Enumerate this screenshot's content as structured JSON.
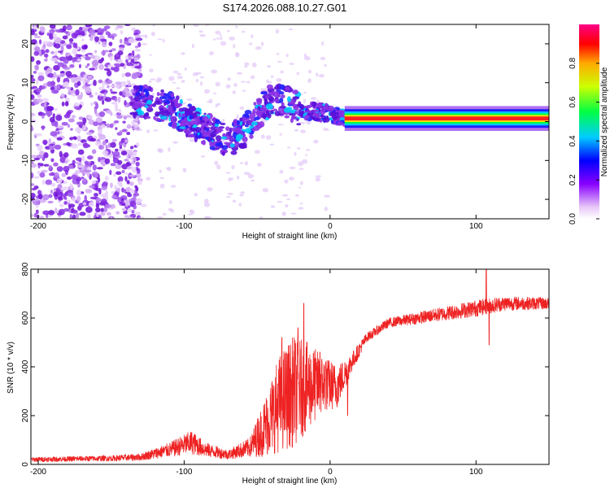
{
  "title": "S174.2026.088.10.27.G01",
  "chart_data": [
    {
      "type": "heatmap",
      "name": "spectrogram",
      "xlabel": "Height of straight line (km)",
      "ylabel": "Frequency (Hz)",
      "xlim": [
        -205,
        150
      ],
      "ylim": [
        -25,
        25
      ],
      "xticks": [
        -200,
        -100,
        0,
        100
      ],
      "yticks": [
        -20,
        -10,
        0,
        10,
        20
      ],
      "colorbar": {
        "label": "Normalized spectral amplitude",
        "range": [
          0,
          1
        ],
        "ticks": [
          0.0,
          0.2,
          0.4,
          0.6,
          0.8
        ]
      },
      "ridge": [
        {
          "x": -135,
          "f": 5.5
        },
        {
          "x": -120,
          "f": 4.5
        },
        {
          "x": -110,
          "f": 3.5
        },
        {
          "x": -100,
          "f": 1.0
        },
        {
          "x": -90,
          "f": -1.0
        },
        {
          "x": -80,
          "f": -3.0
        },
        {
          "x": -70,
          "f": -5.0
        },
        {
          "x": -60,
          "f": -3.0
        },
        {
          "x": -50,
          "f": 2.0
        },
        {
          "x": -40,
          "f": 6.0
        },
        {
          "x": -30,
          "f": 5.0
        },
        {
          "x": -20,
          "f": 3.0
        },
        {
          "x": -10,
          "f": 2.5
        },
        {
          "x": 0,
          "f": 2.0
        },
        {
          "x": 10,
          "f": 1.0
        },
        {
          "x": 20,
          "f": 0.8
        },
        {
          "x": 150,
          "f": 0.8
        }
      ]
    },
    {
      "type": "line",
      "name": "snr",
      "xlabel": "Height of straight line (km)",
      "ylabel": "SNR (10 * v/v)",
      "xlim": [
        -205,
        150
      ],
      "ylim": [
        0,
        800
      ],
      "xticks": [
        -200,
        -100,
        0,
        100
      ],
      "yticks": [
        0,
        200,
        400,
        600,
        800
      ],
      "series": [
        {
          "name": "SNR",
          "color": "#ee2222",
          "envelope": [
            {
              "x": -205,
              "y": 20,
              "noise": 10
            },
            {
              "x": -150,
              "y": 25,
              "noise": 12
            },
            {
              "x": -130,
              "y": 30,
              "noise": 15
            },
            {
              "x": -110,
              "y": 60,
              "noise": 30
            },
            {
              "x": -95,
              "y": 90,
              "noise": 50
            },
            {
              "x": -85,
              "y": 60,
              "noise": 30
            },
            {
              "x": -70,
              "y": 40,
              "noise": 20
            },
            {
              "x": -55,
              "y": 70,
              "noise": 40
            },
            {
              "x": -45,
              "y": 150,
              "noise": 120
            },
            {
              "x": -35,
              "y": 250,
              "noise": 200
            },
            {
              "x": -25,
              "y": 300,
              "noise": 230
            },
            {
              "x": -15,
              "y": 320,
              "noise": 180
            },
            {
              "x": -5,
              "y": 330,
              "noise": 120
            },
            {
              "x": 5,
              "y": 320,
              "noise": 90
            },
            {
              "x": 15,
              "y": 420,
              "noise": 40
            },
            {
              "x": 25,
              "y": 520,
              "noise": 20
            },
            {
              "x": 40,
              "y": 580,
              "noise": 20
            },
            {
              "x": 60,
              "y": 600,
              "noise": 25
            },
            {
              "x": 80,
              "y": 620,
              "noise": 30
            },
            {
              "x": 100,
              "y": 640,
              "noise": 35
            },
            {
              "x": 120,
              "y": 660,
              "noise": 30
            },
            {
              "x": 150,
              "y": 660,
              "noise": 25
            }
          ],
          "spikes": [
            {
              "x": -18,
              "y": 660
            },
            {
              "x": -22,
              "y": 560
            },
            {
              "x": -33,
              "y": 520
            },
            {
              "x": 107,
              "y": 800
            },
            {
              "x": 109,
              "y": 490
            },
            {
              "x": 12,
              "y": 200
            },
            {
              "x": -7,
              "y": 460
            },
            {
              "x": -3,
              "y": 420
            }
          ]
        }
      ]
    }
  ]
}
